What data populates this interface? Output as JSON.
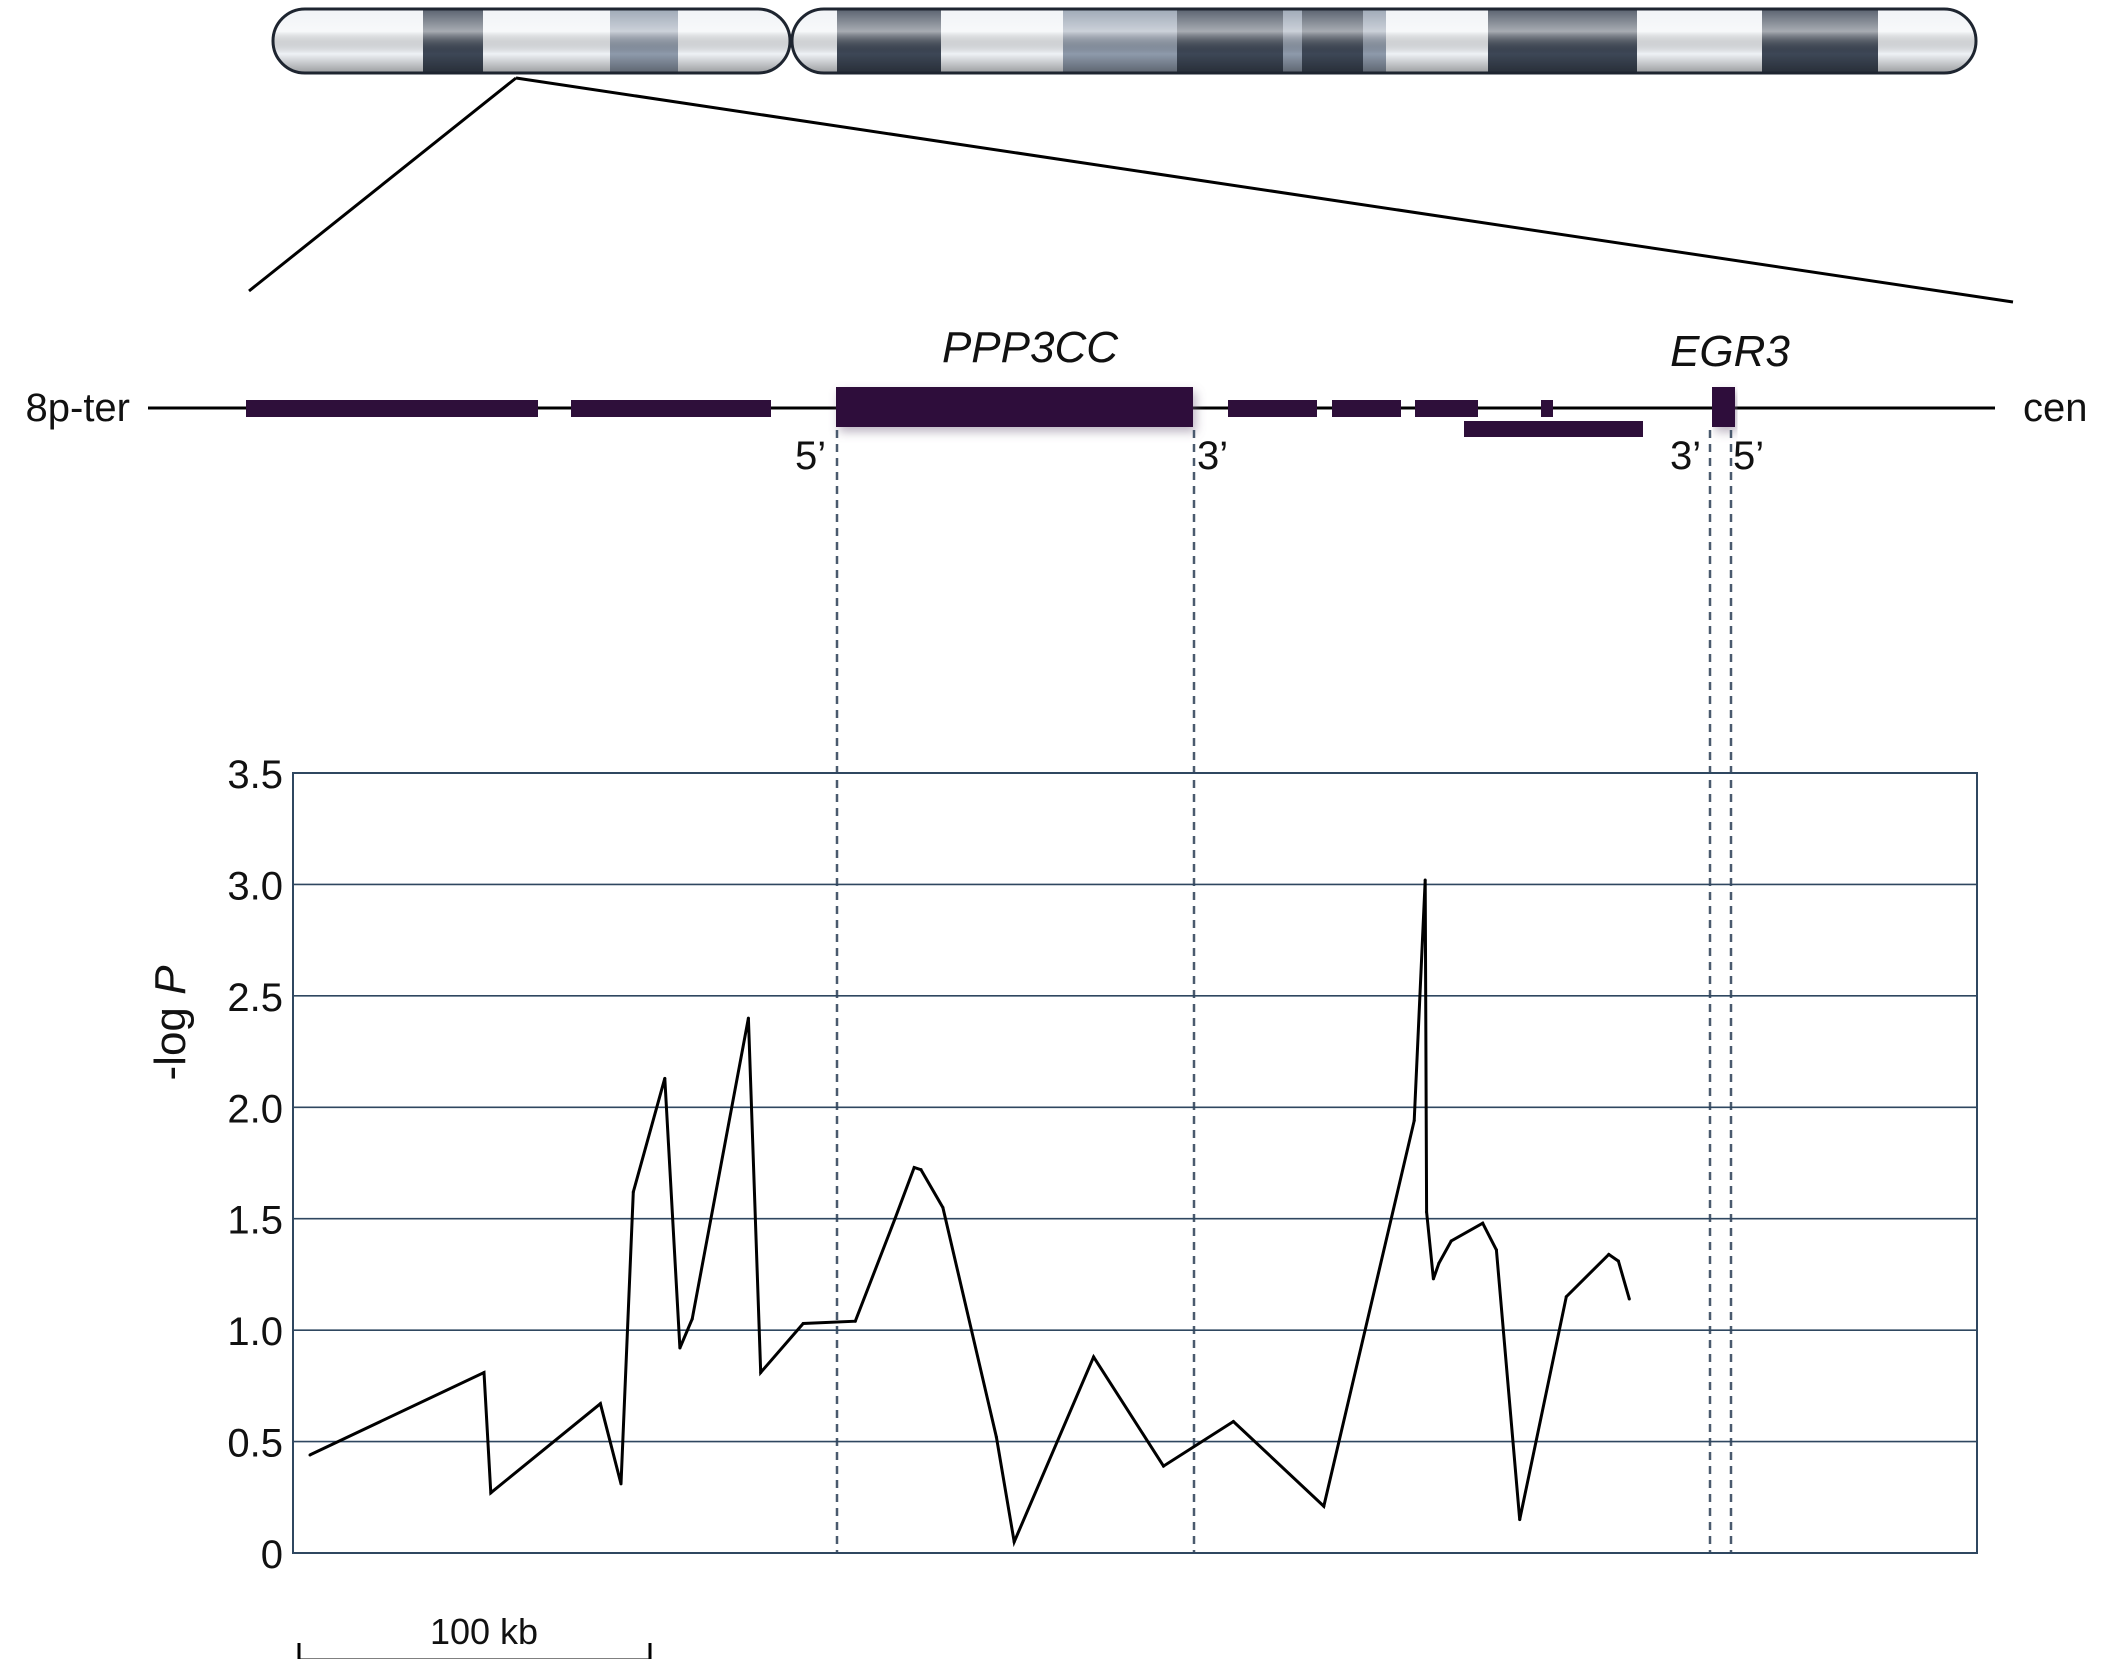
{
  "chromosome": {
    "bands": [
      {
        "id": "b1",
        "tone": "light"
      },
      {
        "id": "b2",
        "tone": "dark"
      },
      {
        "id": "b3",
        "tone": "light"
      },
      {
        "id": "b4",
        "tone": "mid"
      },
      {
        "id": "b5",
        "tone": "light"
      },
      {
        "id": "b6",
        "tone": "light"
      },
      {
        "id": "b7",
        "tone": "dark"
      },
      {
        "id": "b8",
        "tone": "light"
      },
      {
        "id": "b9",
        "tone": "mid"
      },
      {
        "id": "b10",
        "tone": "dark"
      },
      {
        "id": "b11",
        "tone": "mid"
      },
      {
        "id": "b12",
        "tone": "dark"
      },
      {
        "id": "b13",
        "tone": "mid"
      },
      {
        "id": "b14",
        "tone": "light"
      },
      {
        "id": "b15",
        "tone": "dark"
      },
      {
        "id": "b16",
        "tone": "light"
      },
      {
        "id": "b17",
        "tone": "dark"
      },
      {
        "id": "b18",
        "tone": "light"
      }
    ],
    "colors": {
      "light": "#eef1f5",
      "mid": "#8e9aab",
      "dark": "#3d4756",
      "outline": "#1e2530"
    }
  },
  "gene_map": {
    "left_label": "8p-ter",
    "right_label": "cen",
    "gene_color": "#2e0f3a",
    "genes": [
      {
        "id": "ppp3cc",
        "name": "PPP3CC",
        "five_prime": "5’",
        "three_prime": "3’"
      },
      {
        "id": "egr3",
        "name": "EGR3",
        "five_prime": "5’",
        "three_prime": "3’"
      }
    ]
  },
  "chart_data": {
    "type": "line",
    "ylabel_prefix": "-log ",
    "ylabel_italic": "P",
    "ylim": [
      0,
      3.5
    ],
    "ytick_labels": [
      "0",
      "0.5",
      "1.0",
      "1.5",
      "2.0",
      "2.5",
      "3.0",
      "3.5"
    ],
    "grid": true,
    "x_unit": "kb",
    "series": [
      {
        "values": [
          [
            0,
            0.44
          ],
          [
            63.5,
            0.81
          ],
          [
            66,
            0.27
          ],
          [
            106,
            0.67
          ],
          [
            113.5,
            0.31
          ],
          [
            118,
            1.62
          ],
          [
            129.5,
            2.13
          ],
          [
            135,
            0.92
          ],
          [
            139.5,
            1.05
          ],
          [
            160,
            2.4
          ],
          [
            164.5,
            0.81
          ],
          [
            180,
            1.03
          ],
          [
            199,
            1.04
          ],
          [
            213.5,
            1.5
          ],
          [
            220.5,
            1.73
          ],
          [
            223,
            1.72
          ],
          [
            231,
            1.55
          ],
          [
            250.5,
            0.52
          ],
          [
            257,
            0.05
          ],
          [
            286,
            0.88
          ],
          [
            311.5,
            0.39
          ],
          [
            337,
            0.59
          ],
          [
            370,
            0.21
          ],
          [
            403,
            1.94
          ],
          [
            407,
            3.02
          ],
          [
            407.5,
            1.53
          ],
          [
            410,
            1.23
          ],
          [
            412,
            1.3
          ],
          [
            416.5,
            1.4
          ],
          [
            428,
            1.48
          ],
          [
            433,
            1.36
          ],
          [
            441.5,
            0.15
          ],
          [
            458.5,
            1.15
          ],
          [
            474,
            1.34
          ],
          [
            477.5,
            1.31
          ],
          [
            481.5,
            1.14
          ]
        ]
      }
    ],
    "line_color": "#000000",
    "grid_color": "#2f4760",
    "scale_bar_label": "100 kb"
  }
}
